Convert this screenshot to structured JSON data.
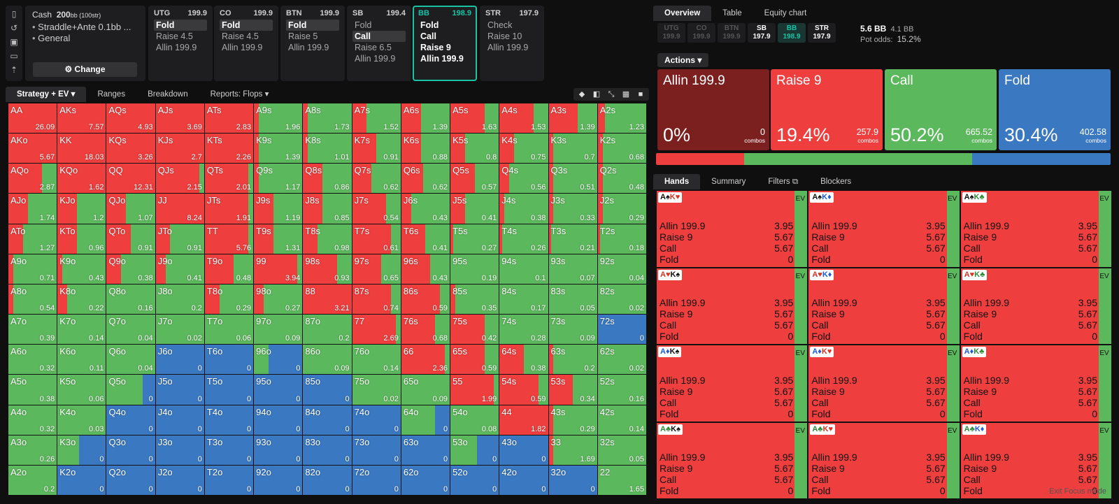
{
  "rail": {
    "icons": [
      "bookmark-icon",
      "history-icon",
      "save-icon",
      "gamepad-icon",
      "upload-icon"
    ]
  },
  "cash": {
    "title": "Cash",
    "stack": "200",
    "stack_unit": "bb (100str)",
    "lines": [
      "Straddle+Ante 0.1bb ...",
      "General"
    ],
    "change": "Change"
  },
  "positions": [
    {
      "name": "UTG",
      "stack": "199.9",
      "options": [
        "Fold",
        "Raise 4.5",
        "Allin 199.9"
      ],
      "selected": 0,
      "active": false
    },
    {
      "name": "CO",
      "stack": "199.9",
      "options": [
        "Fold",
        "Raise 4.5",
        "Allin 199.9"
      ],
      "selected": 0,
      "active": false
    },
    {
      "name": "BTN",
      "stack": "199.9",
      "options": [
        "Fold",
        "Raise 5",
        "Allin 199.9"
      ],
      "selected": 0,
      "active": false
    },
    {
      "name": "SB",
      "stack": "199.4",
      "options": [
        "Fold",
        "Call",
        "Raise 6.5",
        "Allin 199.9"
      ],
      "selected": 1,
      "active": false
    },
    {
      "name": "BB",
      "stack": "198.9",
      "options": [
        "Fold",
        "Call",
        "Raise 9",
        "Allin 199.9"
      ],
      "selected": -1,
      "active": true
    },
    {
      "name": "STR",
      "stack": "197.9",
      "options": [
        "Check",
        "Raise 10",
        "Allin 199.9"
      ],
      "selected": -1,
      "active": false
    }
  ],
  "left_tabs": [
    "Strategy + EV",
    "Ranges",
    "Breakdown",
    "Reports: Flops"
  ],
  "view_icons": [
    "cube-icon",
    "contrast-icon",
    "compress-icon",
    "grid-icon",
    "square-icon"
  ],
  "matrix": {
    "names": [
      [
        "AA",
        "AKs",
        "AQs",
        "AJs",
        "ATs",
        "A9s",
        "A8s",
        "A7s",
        "A6s",
        "A5s",
        "A4s",
        "A3s",
        "A2s"
      ],
      [
        "AKo",
        "KK",
        "KQs",
        "KJs",
        "KTs",
        "K9s",
        "K8s",
        "K7s",
        "K6s",
        "K5s",
        "K4s",
        "K3s",
        "K2s"
      ],
      [
        "AQo",
        "KQo",
        "QQ",
        "QJs",
        "QTs",
        "Q9s",
        "Q8s",
        "Q7s",
        "Q6s",
        "Q5s",
        "Q4s",
        "Q3s",
        "Q2s"
      ],
      [
        "AJo",
        "KJo",
        "QJo",
        "JJ",
        "JTs",
        "J9s",
        "J8s",
        "J7s",
        "J6s",
        "J5s",
        "J4s",
        "J3s",
        "J2s"
      ],
      [
        "ATo",
        "KTo",
        "QTo",
        "JTo",
        "TT",
        "T9s",
        "T8s",
        "T7s",
        "T6s",
        "T5s",
        "T4s",
        "T3s",
        "T2s"
      ],
      [
        "A9o",
        "K9o",
        "Q9o",
        "J9o",
        "T9o",
        "99",
        "98s",
        "97s",
        "96s",
        "95s",
        "94s",
        "93s",
        "92s"
      ],
      [
        "A8o",
        "K8o",
        "Q8o",
        "J8o",
        "T8o",
        "98o",
        "88",
        "87s",
        "86s",
        "85s",
        "84s",
        "83s",
        "82s"
      ],
      [
        "A7o",
        "K7o",
        "Q7o",
        "J7o",
        "T7o",
        "97o",
        "87o",
        "77",
        "76s",
        "75s",
        "74s",
        "73s",
        "72s"
      ],
      [
        "A6o",
        "K6o",
        "Q6o",
        "J6o",
        "T6o",
        "96o",
        "86o",
        "76o",
        "66",
        "65s",
        "64s",
        "63s",
        "62s"
      ],
      [
        "A5o",
        "K5o",
        "Q5o",
        "J5o",
        "T5o",
        "95o",
        "85o",
        "75o",
        "65o",
        "55",
        "54s",
        "53s",
        "52s"
      ],
      [
        "A4o",
        "K4o",
        "Q4o",
        "J4o",
        "T4o",
        "94o",
        "84o",
        "74o",
        "64o",
        "54o",
        "44",
        "43s",
        "42s"
      ],
      [
        "A3o",
        "K3o",
        "Q3o",
        "J3o",
        "T3o",
        "93o",
        "83o",
        "73o",
        "63o",
        "53o",
        "43o",
        "33",
        "32s"
      ],
      [
        "A2o",
        "K2o",
        "Q2o",
        "J2o",
        "T2o",
        "92o",
        "82o",
        "72o",
        "62o",
        "52o",
        "42o",
        "32o",
        "22"
      ]
    ],
    "ev": [
      [
        "26.09",
        "7.57",
        "4.93",
        "3.69",
        "2.83",
        "1.96",
        "1.73",
        "1.52",
        "1.39",
        "1.63",
        "1.53",
        "1.39",
        "1.23"
      ],
      [
        "5.67",
        "18.03",
        "3.26",
        "2.7",
        "2.26",
        "1.39",
        "1.01",
        "0.91",
        "0.88",
        "0.8",
        "0.75",
        "0.7",
        "0.68"
      ],
      [
        "2.87",
        "1.62",
        "12.31",
        "2.15",
        "2.01",
        "1.17",
        "0.86",
        "0.62",
        "0.62",
        "0.57",
        "0.56",
        "0.51",
        "0.48"
      ],
      [
        "1.74",
        "1.2",
        "1.07",
        "8.24",
        "1.91",
        "1.19",
        "0.85",
        "0.54",
        "0.43",
        "0.41",
        "0.38",
        "0.33",
        "0.29"
      ],
      [
        "1.27",
        "0.96",
        "0.91",
        "0.91",
        "5.76",
        "1.31",
        "0.98",
        "0.61",
        "0.41",
        "0.27",
        "0.26",
        "0.21",
        "0.18"
      ],
      [
        "0.71",
        "0.43",
        "0.38",
        "0.41",
        "0.48",
        "3.94",
        "0.93",
        "0.65",
        "0.43",
        "0.19",
        "0.1",
        "0.07",
        "0.04"
      ],
      [
        "0.54",
        "0.22",
        "0.16",
        "0.2",
        "0.29",
        "0.27",
        "3.21",
        "0.74",
        "0.59",
        "0.35",
        "0.17",
        "0.05",
        "0.02"
      ],
      [
        "0.39",
        "0.14",
        "0.04",
        "0.02",
        "0.06",
        "0.09",
        "0.2",
        "2.69",
        "0.68",
        "0.42",
        "0.28",
        "0.09",
        "0"
      ],
      [
        "0.32",
        "0.11",
        "0.04",
        "0",
        "0",
        "0",
        "0.09",
        "0.14",
        "2.36",
        "0.59",
        "0.38",
        "0.2",
        "0.02"
      ],
      [
        "0.38",
        "0.06",
        "0",
        "0",
        "0",
        "0",
        "0",
        "0.02",
        "0.09",
        "1.99",
        "0.59",
        "0.34",
        "0.16"
      ],
      [
        "0.32",
        "0.03",
        "0",
        "0",
        "0",
        "0",
        "0",
        "0",
        "0",
        "0.08",
        "1.82",
        "0.29",
        "0.14"
      ],
      [
        "0.26",
        "0",
        "0",
        "0",
        "0",
        "0",
        "0",
        "0",
        "0",
        "0",
        "0",
        "1.69",
        "0.05"
      ],
      [
        "0.2",
        "0",
        "0",
        "0",
        "0",
        "0",
        "0",
        "0",
        "0",
        "0",
        "0",
        "0",
        "1.65"
      ]
    ],
    "raise": [
      [
        1,
        1,
        1,
        1,
        1,
        0.1,
        0.1,
        0.3,
        0.4,
        0.7,
        0.7,
        0.6,
        0.15
      ],
      [
        1,
        1,
        1,
        1,
        1,
        0.1,
        0.1,
        0.5,
        0.4,
        0.3,
        0.3,
        0.1,
        0.1
      ],
      [
        0.7,
        1,
        1,
        0.9,
        0.9,
        0.1,
        0.4,
        0.4,
        0.45,
        0.5,
        0.2,
        0.1,
        0.1
      ],
      [
        0.4,
        0.4,
        0.4,
        1,
        0.9,
        0.4,
        0.4,
        0.7,
        0.2,
        0.3,
        0.1,
        0.1,
        0.1
      ],
      [
        0.3,
        0.4,
        0.5,
        0.3,
        0.9,
        0.4,
        0.3,
        0.8,
        0.5,
        0.05,
        0.05,
        0.05,
        0.05
      ],
      [
        0.1,
        0.1,
        0.3,
        0.2,
        0.6,
        0.9,
        0.7,
        0.6,
        0.6,
        0,
        0,
        0,
        0
      ],
      [
        0.1,
        0.2,
        0,
        0,
        0.3,
        0.2,
        1,
        0.8,
        0.8,
        0.1,
        0,
        0,
        0
      ],
      [
        0,
        0,
        0,
        0,
        0,
        0,
        0,
        0.9,
        0.7,
        0.7,
        0,
        0,
        0
      ],
      [
        0,
        0,
        0,
        0,
        0,
        0,
        0,
        0,
        0.9,
        0.7,
        0.5,
        0.1,
        0
      ],
      [
        0,
        0,
        0,
        0,
        0,
        0,
        0,
        0,
        0,
        0.9,
        0.8,
        0.5,
        0
      ],
      [
        0,
        0,
        0,
        0,
        0,
        0,
        0,
        0,
        0,
        0,
        1,
        0.1,
        0
      ],
      [
        0,
        0,
        0,
        0,
        0,
        0,
        0,
        0,
        0,
        0,
        0,
        0.1,
        0
      ],
      [
        0,
        0,
        0,
        0,
        0,
        0,
        0,
        0,
        0,
        0,
        0,
        0,
        0
      ]
    ],
    "fold": [
      [
        0,
        0,
        0,
        0,
        0,
        0,
        0,
        0,
        0,
        0,
        0,
        0,
        0
      ],
      [
        0,
        0,
        0,
        0,
        0,
        0,
        0,
        0,
        0,
        0,
        0,
        0,
        0
      ],
      [
        0,
        0,
        0,
        0,
        0,
        0,
        0,
        0,
        0,
        0,
        0,
        0,
        0
      ],
      [
        0,
        0,
        0,
        0,
        0,
        0,
        0,
        0,
        0,
        0,
        0,
        0,
        0
      ],
      [
        0,
        0,
        0,
        0,
        0,
        0,
        0,
        0,
        0,
        0,
        0,
        0,
        0
      ],
      [
        0,
        0,
        0,
        0,
        0,
        0,
        0,
        0,
        0,
        0,
        0,
        0,
        0
      ],
      [
        0,
        0,
        0,
        0,
        0,
        0,
        0,
        0,
        0,
        0,
        0,
        0,
        0
      ],
      [
        0,
        0,
        0,
        0,
        0,
        0,
        0,
        0,
        0,
        0,
        0,
        0,
        1
      ],
      [
        0,
        0,
        0,
        1,
        1,
        0.7,
        0,
        0,
        0,
        0,
        0,
        0,
        0
      ],
      [
        0,
        0,
        0.25,
        1,
        1,
        1,
        1,
        0,
        0,
        0,
        0,
        0,
        0
      ],
      [
        0,
        0,
        1,
        1,
        1,
        1,
        1,
        1,
        0.3,
        0,
        0,
        0,
        0
      ],
      [
        0,
        0.55,
        1,
        1,
        1,
        1,
        1,
        1,
        1,
        0.45,
        1,
        0,
        0
      ],
      [
        0,
        1,
        1,
        1,
        1,
        1,
        1,
        1,
        1,
        1,
        1,
        1,
        0
      ]
    ]
  },
  "right_tabs": [
    "Overview",
    "Table",
    "Equity chart"
  ],
  "mini_positions": [
    {
      "name": "UTG",
      "stack": "199.9",
      "state": "folded"
    },
    {
      "name": "CO",
      "stack": "199.9",
      "state": "folded"
    },
    {
      "name": "BTN",
      "stack": "199.9",
      "state": "folded"
    },
    {
      "name": "SB",
      "stack": "197.9",
      "state": "live"
    },
    {
      "name": "BB",
      "stack": "198.9",
      "state": "hero"
    },
    {
      "name": "STR",
      "stack": "197.9",
      "state": "live"
    }
  ],
  "pot": {
    "bb": "5.6 BB",
    "extra": "4.1 BB",
    "odds_label": "Pot odds:",
    "odds": "15.2%"
  },
  "actions_label": "Actions",
  "actions": [
    {
      "name": "Allin 199.9",
      "pct": "0%",
      "combos": "0",
      "combos_label": "combos",
      "color": "#7c1f1f",
      "share": 0
    },
    {
      "name": "Raise 9",
      "pct": "19.4%",
      "combos": "257.9",
      "combos_label": "combos",
      "color": "#ee3e3e",
      "share": 19.4
    },
    {
      "name": "Call",
      "pct": "50.2%",
      "combos": "665.52",
      "combos_label": "combos",
      "color": "#5cb85c",
      "share": 50.2
    },
    {
      "name": "Fold",
      "pct": "30.4%",
      "combos": "402.58",
      "combos_label": "combos",
      "color": "#3a78c2",
      "share": 30.4
    }
  ],
  "hand_tabs": [
    "Hands",
    "Summary",
    "Filters",
    "Blockers"
  ],
  "hands": [
    {
      "c1": "A♠",
      "c2": "K♥",
      "s1": "blk",
      "s2": "red"
    },
    {
      "c1": "A♠",
      "c2": "K♦",
      "s1": "blk",
      "s2": "blu"
    },
    {
      "c1": "A♠",
      "c2": "K♣",
      "s1": "blk",
      "s2": "grn"
    },
    {
      "c1": "A♥",
      "c2": "K♠",
      "s1": "red",
      "s2": "blk"
    },
    {
      "c1": "A♥",
      "c2": "K♦",
      "s1": "red",
      "s2": "blu"
    },
    {
      "c1": "A♥",
      "c2": "K♣",
      "s1": "red",
      "s2": "grn"
    },
    {
      "c1": "A♦",
      "c2": "K♠",
      "s1": "blu",
      "s2": "blk"
    },
    {
      "c1": "A♦",
      "c2": "K♥",
      "s1": "blu",
      "s2": "red"
    },
    {
      "c1": "A♦",
      "c2": "K♣",
      "s1": "blu",
      "s2": "grn"
    },
    {
      "c1": "A♣",
      "c2": "K♠",
      "s1": "grn",
      "s2": "blk"
    },
    {
      "c1": "A♣",
      "c2": "K♥",
      "s1": "grn",
      "s2": "red"
    },
    {
      "c1": "A♣",
      "c2": "K♦",
      "s1": "grn",
      "s2": "blu"
    }
  ],
  "hand_lines": [
    {
      "label": "Allin 199.9",
      "val": "3.95"
    },
    {
      "label": "Raise 9",
      "val": "5.67"
    },
    {
      "label": "Call",
      "val": "5.67"
    },
    {
      "label": "Fold",
      "val": "0"
    }
  ],
  "ev_label": "EV",
  "exit_focus": "Exit Focus mode",
  "colors": {
    "raise": "#ee3e3e",
    "call": "#5cb85c",
    "fold": "#3a78c2",
    "allin": "#7c1f1f",
    "accent": "#17c3a3"
  }
}
